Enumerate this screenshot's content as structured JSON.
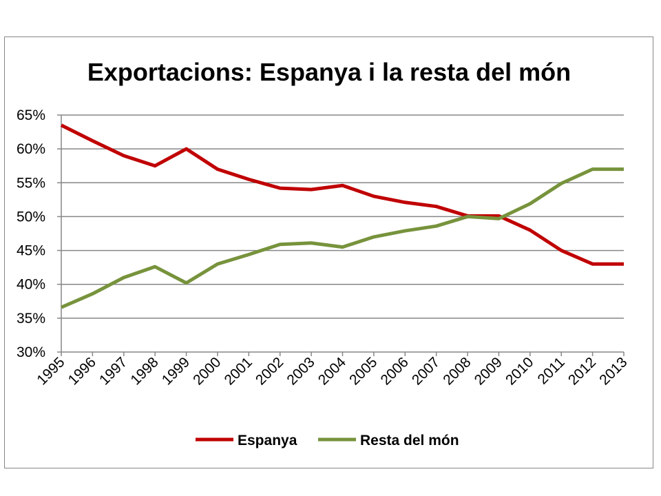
{
  "chart_data": {
    "type": "line",
    "title": "Exportacions:  Espanya  i la resta del món",
    "xlabel": "",
    "ylabel": "",
    "x": [
      "1995",
      "1996",
      "1997",
      "1998",
      "1999",
      "2000",
      "2001",
      "2002",
      "2003",
      "2004",
      "2005",
      "2006",
      "2007",
      "2008",
      "2009",
      "2010",
      "2011",
      "2012",
      "2013"
    ],
    "ylim": [
      30,
      65
    ],
    "yticks": [
      30,
      35,
      40,
      45,
      50,
      55,
      60,
      65
    ],
    "ytick_labels": [
      "30%",
      "35%",
      "40%",
      "45%",
      "50%",
      "55%",
      "60%",
      "65%"
    ],
    "grid": true,
    "legend_position": "bottom",
    "series": [
      {
        "name": "Espanya",
        "color": "#C00000",
        "values": [
          63.5,
          61.2,
          59.0,
          57.5,
          60.0,
          57.0,
          55.5,
          54.2,
          54.0,
          54.6,
          53.0,
          52.1,
          51.5,
          50.1,
          50.1,
          48.0,
          45.0,
          43.0,
          43.0
        ]
      },
      {
        "name": "Resta del món",
        "color": "#77933C",
        "values": [
          36.6,
          38.6,
          41.0,
          42.6,
          40.2,
          43.0,
          44.4,
          45.9,
          46.1,
          45.5,
          47.0,
          47.9,
          48.6,
          50.0,
          49.7,
          51.9,
          54.9,
          57.0,
          57.0
        ]
      }
    ]
  }
}
